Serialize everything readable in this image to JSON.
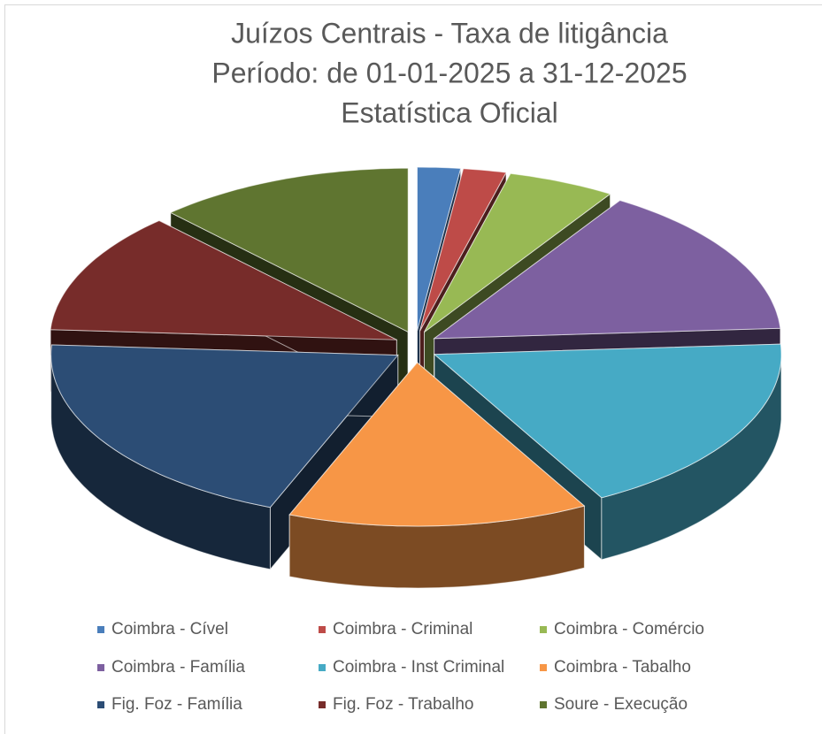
{
  "chart_data": {
    "type": "pie3d",
    "title": [
      "Juízos Centrais - Taxa de litigância",
      "Período: de 01-01-2025 a 31-12-2025",
      "Estatística Oficial"
    ],
    "categories": [
      "Coimbra - Cível",
      "Coimbra - Criminal",
      "Coimbra - Comércio",
      "Coimbra - Família",
      "Coimbra - Inst Criminal",
      "Coimbra - Tabalho",
      "Fig. Foz - Família",
      "Fig. Foz - Trabalho",
      "Soure - Execução"
    ],
    "values": [
      2,
      2,
      5,
      15,
      18,
      14,
      20,
      12,
      12
    ],
    "colors": [
      "#4a7ebb",
      "#be4b48",
      "#98b954",
      "#7d60a0",
      "#46aac5",
      "#f79646",
      "#2c4d75",
      "#772c2a",
      "#5f7530"
    ],
    "legend": "bottom"
  }
}
